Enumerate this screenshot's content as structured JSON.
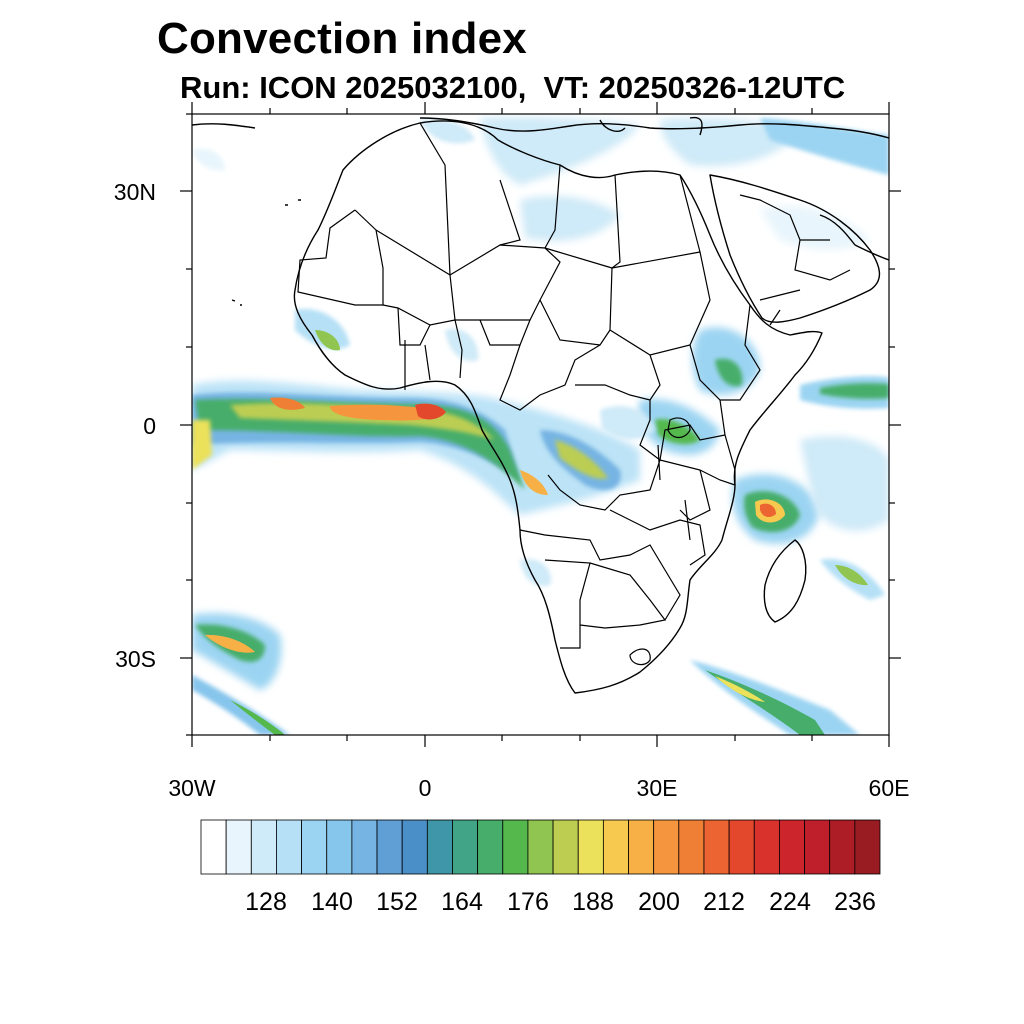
{
  "title": "Convection index",
  "subtitle": "Run: ICON 2025032100,  VT: 20250326-12UTC",
  "y_axis": {
    "labels": [
      "30N",
      "0",
      "30S"
    ]
  },
  "x_axis": {
    "labels": [
      "30W",
      "0",
      "30E",
      "60E"
    ]
  },
  "map": {
    "region": "Africa",
    "lon_range_deg": [
      -30,
      60
    ],
    "lat_range_deg": [
      -40,
      40
    ]
  },
  "colorbar": {
    "labels": [
      "128",
      "140",
      "152",
      "164",
      "176",
      "188",
      "200",
      "212",
      "224",
      "236"
    ],
    "colors": [
      "#ffffff",
      "#e8f5fc",
      "#cfeaf8",
      "#b5e0f6",
      "#9bd4f2",
      "#86c5ec",
      "#76b4e3",
      "#5f9fd6",
      "#4b8fc8",
      "#3e96a8",
      "#42a487",
      "#47ad6a",
      "#55b84d",
      "#8fc550",
      "#bccd52",
      "#ece15a",
      "#f7c94f",
      "#f7b045",
      "#f5953d",
      "#f07f36",
      "#eb6431",
      "#e3482d",
      "#d9312c",
      "#cc262c",
      "#be1f2a",
      "#ad1d26",
      "#981c21"
    ]
  },
  "colors": {
    "ocean": "#ffffff",
    "border": "#000000"
  }
}
